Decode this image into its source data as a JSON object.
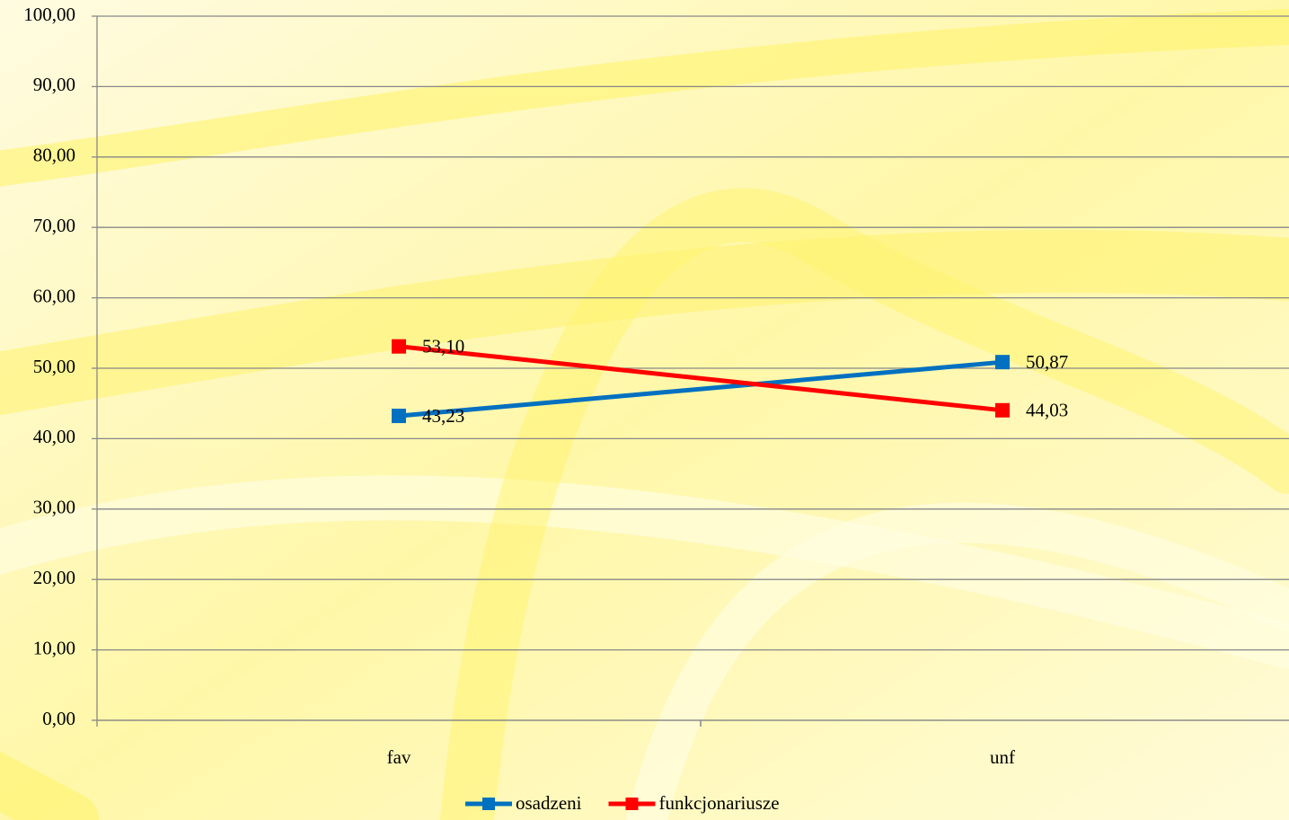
{
  "chart_data": {
    "type": "line",
    "categories": [
      "fav",
      "unf"
    ],
    "series": [
      {
        "name": "osadzeni",
        "color": "#0070c0",
        "values": [
          43.23,
          50.87
        ],
        "value_labels": [
          "43,23",
          "50,87"
        ]
      },
      {
        "name": "funkcjonariusze",
        "color": "#ff0000",
        "values": [
          53.1,
          44.03
        ],
        "value_labels": [
          "53,10",
          "44,03"
        ]
      }
    ],
    "ylim": [
      0,
      100
    ],
    "yticks": [
      {
        "value": 0,
        "label": "0,00"
      },
      {
        "value": 10,
        "label": "10,00"
      },
      {
        "value": 20,
        "label": "20,00"
      },
      {
        "value": 30,
        "label": "30,00"
      },
      {
        "value": 40,
        "label": "40,00"
      },
      {
        "value": 50,
        "label": "50,00"
      },
      {
        "value": 60,
        "label": "60,00"
      },
      {
        "value": 70,
        "label": "70,00"
      },
      {
        "value": 80,
        "label": "80,00"
      },
      {
        "value": 90,
        "label": "90,00"
      },
      {
        "value": 100,
        "label": "100,00"
      }
    ],
    "grid": true,
    "legend": "bottom"
  }
}
